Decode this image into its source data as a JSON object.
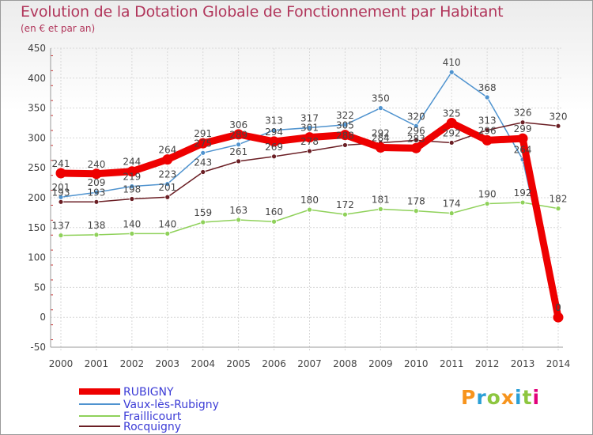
{
  "header": {
    "title": "Evolution de la Dotation Globale de Fonctionnement par Habitant",
    "subtitle": "(en € et par an)"
  },
  "logo": {
    "text": "Proxiti",
    "colors": [
      "#f7941d",
      "#2a9fd6",
      "#8dc63f",
      "#f7941d",
      "#2a9fd6",
      "#8dc63f",
      "#e2007a"
    ]
  },
  "colors": {
    "title": "#b1365b",
    "legend_text": "#3c3cd6",
    "grid": "#d7d7d7"
  },
  "chart_data": {
    "type": "line",
    "title": "Evolution de la Dotation Globale de Fonctionnement par Habitant",
    "subtitle": "(en € et par an)",
    "xlabel": "",
    "ylabel": "",
    "ylim": [
      -50,
      450
    ],
    "yticks": [
      -50,
      0,
      50,
      100,
      150,
      200,
      250,
      300,
      350,
      400,
      450
    ],
    "x": [
      "2000",
      "2001",
      "2002",
      "2003",
      "2004",
      "2005",
      "2006",
      "2007",
      "2008",
      "2009",
      "2010",
      "2011",
      "2012",
      "2013",
      "2014"
    ],
    "grid": true,
    "legend_position": "bottom-left",
    "series": [
      {
        "name": "Vaux-lès-Rubigny",
        "color": "#4f93cf",
        "width": 1.5,
        "values": [
          201,
          209,
          219,
          223,
          275,
          289,
          313,
          317,
          322,
          350,
          320,
          410,
          368,
          264,
          0
        ],
        "labels": [
          "201",
          "209",
          "219",
          "223",
          "275",
          "289",
          "313",
          "317",
          "322",
          "350",
          "320",
          "410",
          "368",
          "264",
          "0"
        ]
      },
      {
        "name": "Fraillicourt",
        "color": "#8fd15a",
        "width": 1.5,
        "values": [
          137,
          138,
          140,
          140,
          159,
          163,
          160,
          180,
          172,
          181,
          178,
          174,
          190,
          192,
          182
        ],
        "labels": [
          "137",
          "138",
          "140",
          "140",
          "159",
          "163",
          "160",
          "180",
          "172",
          "181",
          "178",
          "174",
          "190",
          "192",
          "182"
        ]
      },
      {
        "name": "Rocquigny",
        "color": "#6b1f25",
        "width": 1.5,
        "values": [
          193,
          193,
          198,
          201,
          243,
          261,
          269,
          278,
          288,
          292,
          296,
          292,
          313,
          326,
          320
        ],
        "labels": [
          "193",
          "193",
          "198",
          "201",
          "243",
          "261",
          "269",
          "278",
          "288",
          "292",
          "296",
          "292",
          "313",
          "326",
          "320"
        ]
      },
      {
        "name": "RUBIGNY",
        "color": "#ee0000",
        "width": 9,
        "values": [
          241,
          240,
          244,
          264,
          291,
          306,
          294,
          301,
          305,
          284,
          283,
          325,
          296,
          299,
          0
        ],
        "labels": [
          "241",
          "240",
          "244",
          "264",
          "291",
          "306",
          "294",
          "301",
          "305",
          "284",
          "283",
          "325",
          "296",
          "299",
          "0"
        ]
      }
    ],
    "legend": [
      "RUBIGNY",
      "Vaux-lès-Rubigny",
      "Fraillicourt",
      "Rocquigny"
    ]
  }
}
